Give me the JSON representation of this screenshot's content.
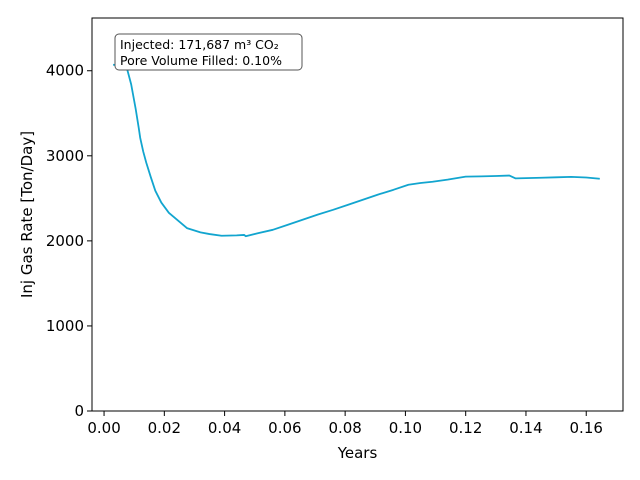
{
  "chart_data": {
    "type": "line",
    "title": "",
    "xlabel": "Years",
    "ylabel": "Inj Gas Rate [Ton/Day]",
    "xlim": [
      -0.004,
      0.1722
    ],
    "ylim": [
      0,
      4620
    ],
    "x_ticks": [
      0.0,
      0.02,
      0.04,
      0.06,
      0.08,
      0.1,
      0.12,
      0.14,
      0.16
    ],
    "x_tick_labels": [
      "0.00",
      "0.02",
      "0.04",
      "0.06",
      "0.08",
      "0.10",
      "0.12",
      "0.14",
      "0.16"
    ],
    "y_ticks": [
      0,
      1000,
      2000,
      3000,
      4000
    ],
    "y_tick_labels": [
      "0",
      "1000",
      "2000",
      "3000",
      "4000"
    ],
    "grid": false,
    "series": [
      {
        "color": "#12a5cf",
        "x": [
          0.003,
          0.0065,
          0.0075,
          0.009,
          0.0105,
          0.0115,
          0.012,
          0.013,
          0.014,
          0.0155,
          0.017,
          0.019,
          0.0215,
          0.0245,
          0.0275,
          0.032,
          0.035,
          0.039,
          0.044,
          0.0465,
          0.047,
          0.051,
          0.056,
          0.061,
          0.066,
          0.071,
          0.076,
          0.081,
          0.086,
          0.091,
          0.096,
          0.101,
          0.105,
          0.109,
          0.114,
          0.12,
          0.125,
          0.13,
          0.1345,
          0.1365,
          0.14,
          0.145,
          0.15,
          0.155,
          0.16,
          0.1645
        ],
        "y": [
          4070,
          4060,
          4040,
          3840,
          3550,
          3330,
          3210,
          3050,
          2920,
          2750,
          2590,
          2450,
          2330,
          2240,
          2150,
          2100,
          2080,
          2060,
          2065,
          2070,
          2055,
          2090,
          2130,
          2190,
          2250,
          2310,
          2365,
          2425,
          2485,
          2545,
          2600,
          2660,
          2680,
          2695,
          2720,
          2755,
          2758,
          2763,
          2768,
          2735,
          2738,
          2742,
          2747,
          2752,
          2745,
          2730
        ]
      }
    ],
    "annotation": {
      "lines": [
        "Injected: 171,687 m³ CO₂",
        "Pore Volume Filled: 0.10%"
      ],
      "placement": "top-left"
    }
  }
}
